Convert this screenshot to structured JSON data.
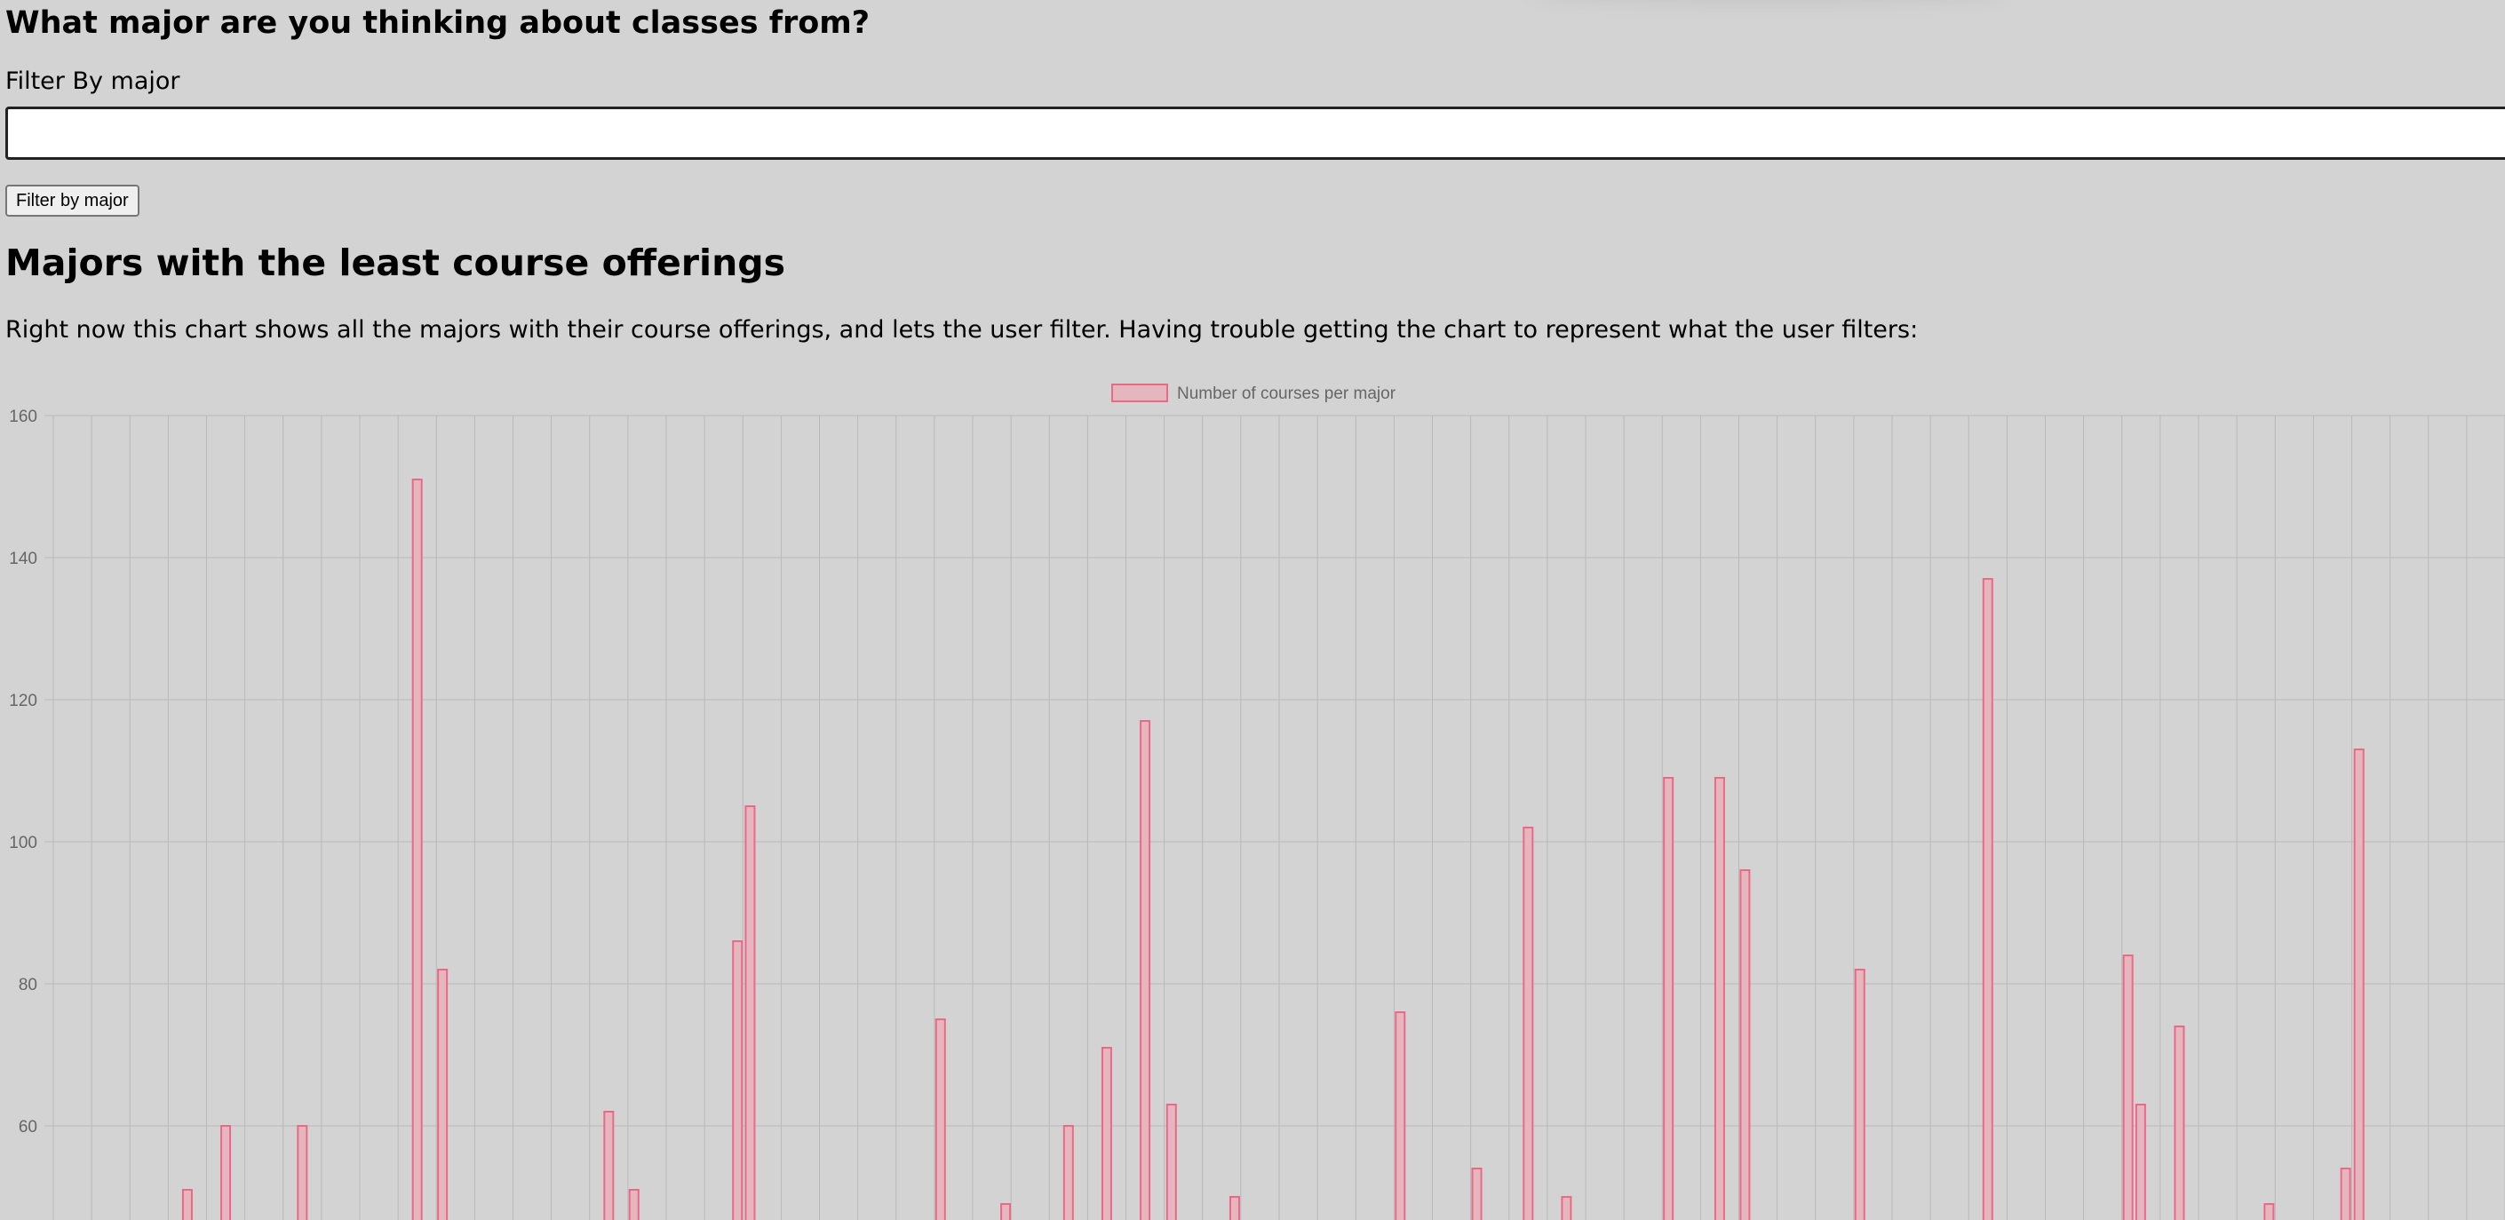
{
  "form": {
    "question": "What major are you thinking about classes from?",
    "filter_label": "Filter By major",
    "filter_value": "",
    "filter_button_label": "Filter by major"
  },
  "chart_section": {
    "heading": "Majors with the least course offerings",
    "description": "Right now this chart shows all the majors with their course offerings, and lets the user filter. Having trouble getting the chart to represent what the user filters:"
  },
  "colors": {
    "bar_fill": "#e6b6bf",
    "bar_border": "#ea6a86",
    "grid": "#b8b8b8",
    "tick_text": "#666666"
  },
  "chart_data": {
    "type": "bar",
    "title": "",
    "legend": {
      "entry": "Number of courses per major",
      "position": "top-center"
    },
    "xlabel": "",
    "ylabel": "",
    "ylim": [
      40,
      160
    ],
    "yticks": [
      60,
      80,
      100,
      120,
      140,
      160
    ],
    "grid": true,
    "series": [
      {
        "name": "Number of courses per major",
        "points": [
          {
            "slot": 3.5,
            "value": 51
          },
          {
            "slot": 4.5,
            "value": 60
          },
          {
            "slot": 6.5,
            "value": 60
          },
          {
            "slot": 9.5,
            "value": 151
          },
          {
            "slot": 10.16,
            "value": 82
          },
          {
            "slot": 14.5,
            "value": 62
          },
          {
            "slot": 15.16,
            "value": 51
          },
          {
            "slot": 17.86,
            "value": 86
          },
          {
            "slot": 18.19,
            "value": 105
          },
          {
            "slot": 23.16,
            "value": 75
          },
          {
            "slot": 24.86,
            "value": 49
          },
          {
            "slot": 26.5,
            "value": 60
          },
          {
            "slot": 27.5,
            "value": 71
          },
          {
            "slot": 28.5,
            "value": 117
          },
          {
            "slot": 29.19,
            "value": 63
          },
          {
            "slot": 30.84,
            "value": 50
          },
          {
            "slot": 35.16,
            "value": 76
          },
          {
            "slot": 37.16,
            "value": 54
          },
          {
            "slot": 38.5,
            "value": 102
          },
          {
            "slot": 39.5,
            "value": 50
          },
          {
            "slot": 42.16,
            "value": 109
          },
          {
            "slot": 43.5,
            "value": 109
          },
          {
            "slot": 44.16,
            "value": 96
          },
          {
            "slot": 47.16,
            "value": 82
          },
          {
            "slot": 50.5,
            "value": 137
          },
          {
            "slot": 54.16,
            "value": 84
          },
          {
            "slot": 54.49,
            "value": 63
          },
          {
            "slot": 55.5,
            "value": 74
          },
          {
            "slot": 57.84,
            "value": 49
          },
          {
            "slot": 59.84,
            "value": 54
          },
          {
            "slot": 60.19,
            "value": 113
          }
        ]
      }
    ],
    "category_count": 64
  }
}
